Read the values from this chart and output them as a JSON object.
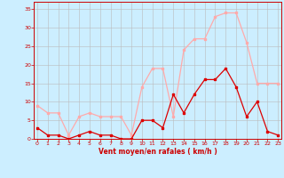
{
  "hours": [
    0,
    1,
    2,
    3,
    4,
    5,
    6,
    7,
    8,
    9,
    10,
    11,
    12,
    13,
    14,
    15,
    16,
    17,
    18,
    19,
    20,
    21,
    22,
    23
  ],
  "rafales": [
    9,
    7,
    7,
    1,
    6,
    7,
    6,
    6,
    6,
    1,
    14,
    19,
    19,
    6,
    24,
    27,
    27,
    33,
    34,
    34,
    26,
    15,
    15,
    15
  ],
  "moyen": [
    3,
    1,
    1,
    0,
    1,
    2,
    1,
    1,
    0,
    0,
    5,
    5,
    3,
    12,
    7,
    12,
    16,
    16,
    19,
    14,
    6,
    10,
    2,
    1
  ],
  "color_rafales": "#ffaaaa",
  "color_moyen": "#dd0000",
  "bg_color": "#cceeff",
  "grid_color": "#bbbbbb",
  "xlabel": "Vent moyen/en rafales ( km/h )",
  "ylabel_ticks": [
    0,
    5,
    10,
    15,
    20,
    25,
    30,
    35
  ],
  "ylim": [
    0,
    37
  ],
  "xlim": [
    -0.3,
    23.3
  ],
  "xlabel_color": "#cc0000",
  "tick_color": "#cc0000",
  "marker_size": 2.0,
  "linewidth": 0.9
}
